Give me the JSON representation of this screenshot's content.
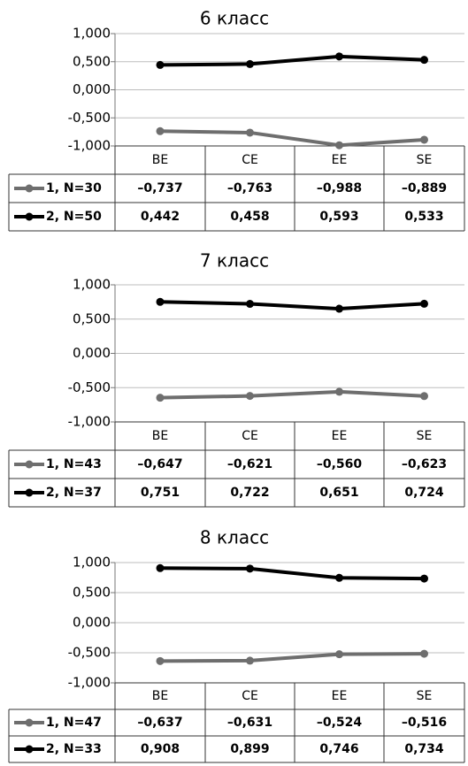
{
  "chart_data": [
    {
      "type": "line",
      "title": "6 класс",
      "categories": [
        "BE",
        "CE",
        "EE",
        "SE"
      ],
      "yticks": [
        "1,000",
        "0,500",
        "0,000",
        "-0,500",
        "-1,000"
      ],
      "ylim": [
        -1,
        1
      ],
      "grid": true,
      "legend": "table-left",
      "series": [
        {
          "name": "1, N=30",
          "values": [
            -0.737,
            -0.763,
            -0.988,
            -0.889
          ],
          "labels": [
            "–0,737",
            "–0,763",
            "–0,988",
            "–0,889"
          ],
          "color": "#6e6e6e"
        },
        {
          "name": "2, N=50",
          "values": [
            0.442,
            0.458,
            0.593,
            0.533
          ],
          "labels": [
            "0,442",
            "0,458",
            "0,593",
            "0,533"
          ],
          "color": "#000000"
        }
      ]
    },
    {
      "type": "line",
      "title": "7 класс",
      "categories": [
        "BE",
        "CE",
        "EE",
        "SE"
      ],
      "yticks": [
        "1,000",
        "0,500",
        "0,000",
        "-0,500",
        "-1,000"
      ],
      "ylim": [
        -1,
        1
      ],
      "grid": true,
      "legend": "table-left",
      "series": [
        {
          "name": "1, N=43",
          "values": [
            -0.647,
            -0.621,
            -0.56,
            -0.623
          ],
          "labels": [
            "–0,647",
            "–0,621",
            "–0,560",
            "–0,623"
          ],
          "color": "#6e6e6e"
        },
        {
          "name": "2, N=37",
          "values": [
            0.751,
            0.722,
            0.651,
            0.724
          ],
          "labels": [
            "0,751",
            "0,722",
            "0,651",
            "0,724"
          ],
          "color": "#000000"
        }
      ]
    },
    {
      "type": "line",
      "title": "8 класс",
      "categories": [
        "BE",
        "CE",
        "EE",
        "SE"
      ],
      "yticks": [
        "1,000",
        "0,500",
        "0,000",
        "-0,500",
        "-1,000"
      ],
      "ylim": [
        -1,
        1
      ],
      "grid": true,
      "legend": "table-left",
      "series": [
        {
          "name": "1, N=47",
          "values": [
            -0.637,
            -0.631,
            -0.524,
            -0.516
          ],
          "labels": [
            "–0,637",
            "–0,631",
            "–0,524",
            "–0,516"
          ],
          "color": "#6e6e6e"
        },
        {
          "name": "2, N=33",
          "values": [
            0.908,
            0.899,
            0.746,
            0.734
          ],
          "labels": [
            "0,908",
            "0,899",
            "0,746",
            "0,734"
          ],
          "color": "#000000"
        }
      ]
    }
  ]
}
